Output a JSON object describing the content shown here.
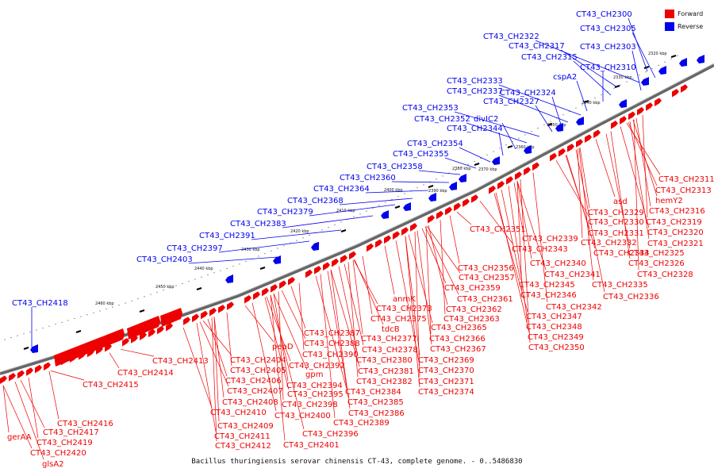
{
  "caption": "Bacillus thuringiensis serovar chinensis CT-43, complete genome. - 0..5486830",
  "legend": {
    "forward_label": "Forward",
    "reverse_label": "Reverse"
  },
  "colors": {
    "forward": "#ee0000",
    "reverse": "#0000ee",
    "backbone": "#888888"
  },
  "kbp_ticks": [
    "2320 kbp",
    "2330 kbp",
    "2340 kbp",
    "2350 kbp",
    "2360 kbp",
    "2370 kbp",
    "2380 kbp",
    "2390 kbp",
    "2400 kbp",
    "2410 kbp",
    "2420 kbp",
    "2430 kbp",
    "2440 kbp",
    "2450 kbp",
    "2460 kbp"
  ],
  "reverse_labels": [
    "CT43_CH2300",
    "CT43_CH2305",
    "CT43_CH2322",
    "CT43_CH2317",
    "CT43_CH2303",
    "CT43_CH2315",
    "CT43_CH2310",
    "cspA2",
    "CT43_CH2333",
    "CT43_CH2337",
    "CT43_CH2324",
    "CT43_CH2327",
    "CT43_CH2353",
    "CT43_CH2352",
    "divIC2",
    "CT43_CH2344",
    "CT43_CH2354",
    "CT43_CH2355",
    "CT43_CH2358",
    "CT43_CH2360",
    "CT43_CH2364",
    "CT43_CH2368",
    "CT43_CH2379",
    "CT43_CH2383",
    "CT43_CH2391",
    "CT43_CH2397",
    "CT43_CH2403",
    "CT43_CH2418"
  ],
  "forward_labels": [
    "CT43_CH2311",
    "CT43_CH2313",
    "hemY2",
    "asd",
    "CT43_CH2316",
    "CT43_CH2329",
    "CT43_CH2319",
    "CT43_CH2330",
    "CT43_CH2320",
    "CT43_CH2331",
    "CT43_CH2321",
    "CT43_CH2351",
    "CT43_CH2339",
    "CT43_CH2332",
    "CT43_CH2343",
    "CT43_CH2334",
    "CT43_CH2325",
    "CT43_CH2326",
    "CT43_CH2340",
    "CT43_CH2356",
    "CT43_CH2328",
    "CT43_CH2357",
    "CT43_CH2341",
    "CT43_CH2359",
    "CT43_CH2345",
    "CT43_CH2335",
    "anmK",
    "CT43_CH2346",
    "CT43_CH2361",
    "CT43_CH2336",
    "CT43_CH2373",
    "CT43_CH2362",
    "CT43_CH2342",
    "CT43_CH2375",
    "CT43_CH2363",
    "CT43_CH2347",
    "tdcB",
    "CT43_CH2365",
    "CT43_CH2348",
    "CT43_CH2387",
    "CT43_CH2377",
    "CT43_CH2366",
    "CT43_CH2349",
    "pepD",
    "CT43_CH2388",
    "CT43_CH2378",
    "CT43_CH2367",
    "CT43_CH2350",
    "CT43_CH2390",
    "CT43_CH2413",
    "CT43_CH2404",
    "CT43_CH2392",
    "CT43_CH2380",
    "CT43_CH2369",
    "CT43_CH2414",
    "CT43_CH2405",
    "gpm",
    "CT43_CH2381",
    "CT43_CH2370",
    "CT43_CH2406",
    "CT43_CH2394",
    "CT43_CH2382",
    "CT43_CH2371",
    "CT43_CH2415",
    "CT43_CH2407",
    "CT43_CH2395",
    "CT43_CH2384",
    "CT43_CH2374",
    "CT43_CH2408",
    "CT43_CH2398",
    "CT43_CH2385",
    "CT43_CH2410",
    "CT43_CH2400",
    "CT43_CH2386",
    "CT43_CH2389",
    "CT43_CH2416",
    "CT43_CH2409",
    "CT43_CH2396",
    "gerAA",
    "CT43_CH2417",
    "CT43_CH2411",
    "CT43_CH2401",
    "CT43_CH2419",
    "CT43_CH2412",
    "CT43_CH2420",
    "glsA2"
  ]
}
